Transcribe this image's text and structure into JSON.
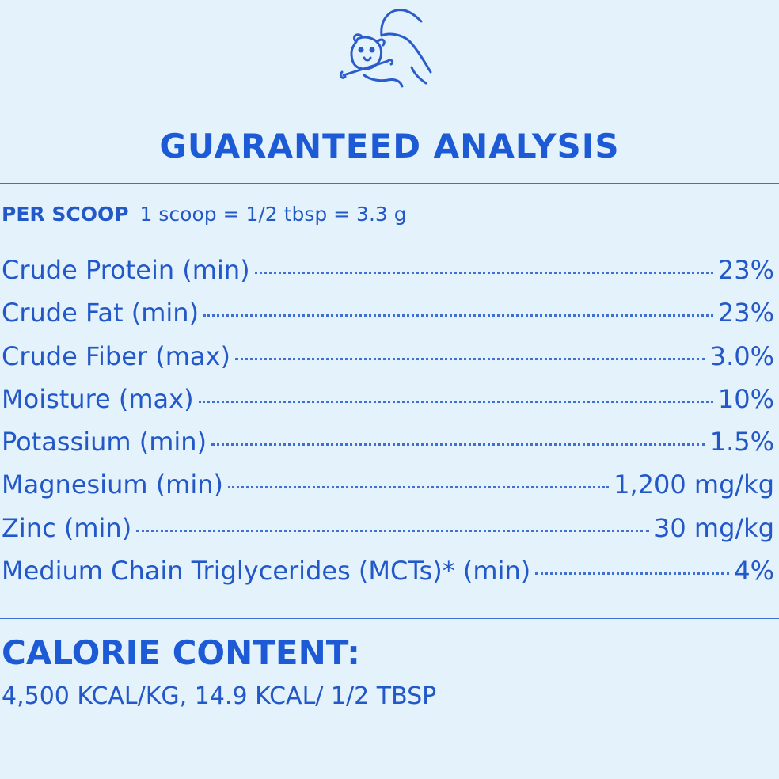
{
  "title": "GUARANTEED ANALYSIS",
  "serving": {
    "label": "PER SCOOP",
    "text": "1 scoop = 1/2 tbsp = 3.3 g"
  },
  "rows": [
    {
      "label": "Crude Protein (min)",
      "value": "23%"
    },
    {
      "label": "Crude Fat (min)",
      "value": "23%"
    },
    {
      "label": "Crude Fiber (max)",
      "value": "3.0%"
    },
    {
      "label": "Moisture (max)",
      "value": "10%"
    },
    {
      "label": "Potassium (min)",
      "value": "1.5%"
    },
    {
      "label": "Magnesium (min)",
      "value": "1,200 mg/kg"
    },
    {
      "label": "Zinc (min)",
      "value": "30 mg/kg"
    },
    {
      "label": "Medium Chain Triglycerides (MCTs)* (min)",
      "value": "4%"
    }
  ],
  "calorie": {
    "heading": "CALORIE CONTENT:",
    "text": "4,500 KCAL/KG, 14.9 KCAL/ 1/2 TBSP"
  }
}
